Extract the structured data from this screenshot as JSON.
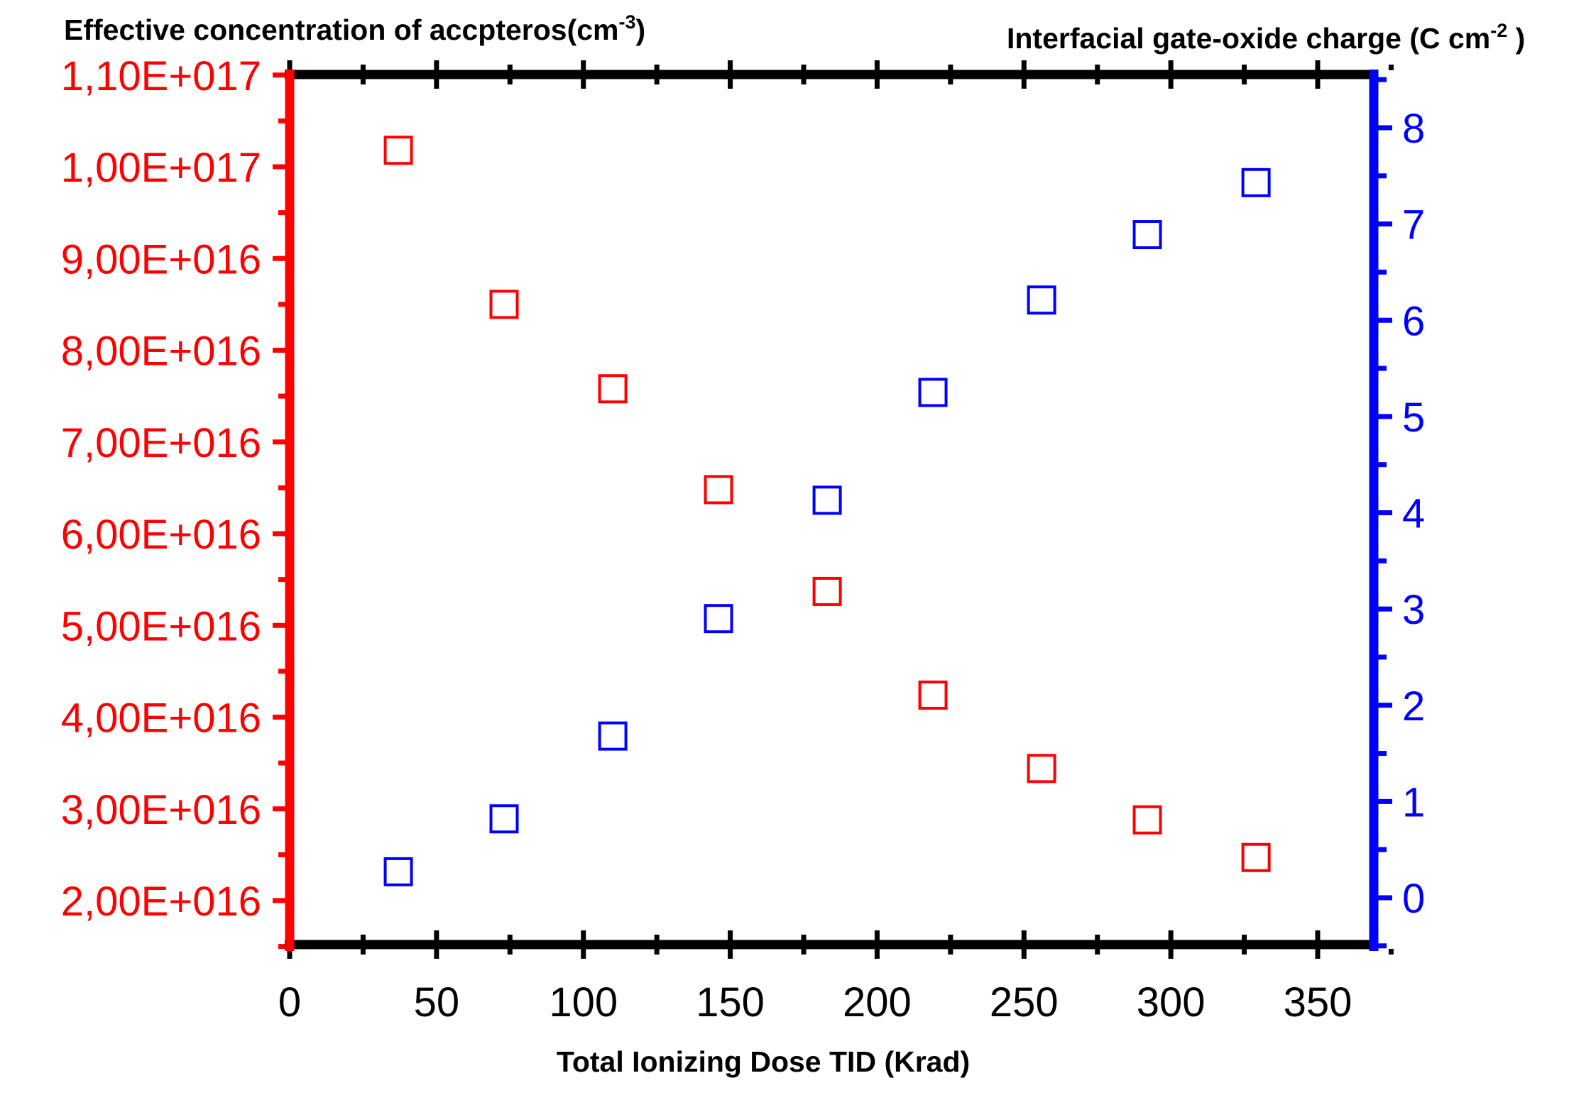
{
  "chart_data": {
    "type": "scatter",
    "title": "",
    "xlabel": "Total Ionizing Dose TID (Krad)",
    "xlim": [
      0,
      375
    ],
    "xticks": [
      "0",
      "50",
      "100",
      "150",
      "200",
      "250",
      "300",
      "350"
    ],
    "xtick_values": [
      0,
      50,
      100,
      150,
      200,
      250,
      300,
      350
    ],
    "y_left": {
      "label_main": "Effective concentration of accpteros(cm",
      "label_sup": "-3",
      "label_tail": ")",
      "color": "#ff0000",
      "ylim": [
        1.5e+16,
        1.1e+17
      ],
      "ticks": [
        "1,10E+017",
        "1,00E+017",
        "9,00E+016",
        "8,00E+016",
        "7,00E+016",
        "6,00E+016",
        "5,00E+016",
        "4,00E+016",
        "3,00E+016",
        "2,00E+016"
      ],
      "tick_values": [
        1.1e+17,
        1e+17,
        9e+16,
        8e+16,
        7e+16,
        6e+16,
        5e+16,
        4e+16,
        3e+16,
        2e+16
      ]
    },
    "y_right": {
      "label_main": "Interfacial gate-oxide charge (C cm",
      "label_sup": "-2",
      "label_tail": " )",
      "color": "#0000ff",
      "ylim": [
        -0.6,
        8.5
      ],
      "ticks": [
        "8",
        "7",
        "6",
        "5",
        "4",
        "3",
        "2",
        "1",
        "0"
      ],
      "tick_values": [
        8,
        7,
        6,
        5,
        4,
        3,
        2,
        1,
        0
      ]
    },
    "series": [
      {
        "axis": "left",
        "color": "#ff0000",
        "x": [
          37,
          73,
          110,
          146,
          183,
          219,
          256,
          292,
          329
        ],
        "y": [
          1.018e+17,
          8.5e+16,
          7.58e+16,
          6.48e+16,
          5.37e+16,
          4.24e+16,
          3.44e+16,
          2.88e+16,
          2.47e+16
        ]
      },
      {
        "axis": "right",
        "color": "#0000ff",
        "x": [
          37,
          73,
          110,
          146,
          183,
          219,
          256,
          292,
          329
        ],
        "y": [
          0.27,
          0.82,
          1.68,
          2.9,
          4.13,
          5.25,
          6.21,
          6.89,
          7.43
        ]
      }
    ]
  }
}
